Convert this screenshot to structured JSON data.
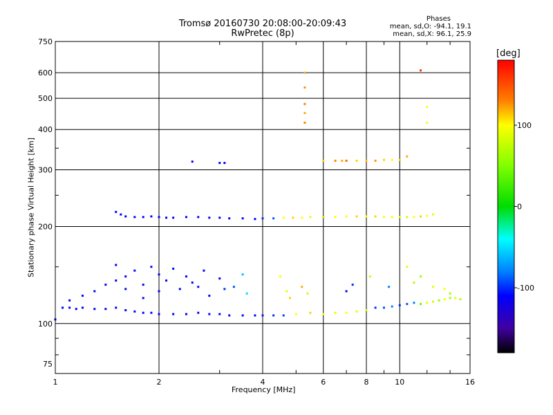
{
  "chart_data": {
    "type": "scatter",
    "title": "Tromsø 20160730 20:08:00-20:09:43",
    "subtitle": "RwPretec (8p)",
    "xlabel": "Frequency [MHz]",
    "ylabel": "Stationary phase Virtual Height [km]",
    "x_scale": "log",
    "y_scale": "log",
    "xlim": [
      1,
      16
    ],
    "ylim": [
      70,
      750
    ],
    "x_ticks": [
      1,
      2,
      4,
      6,
      8,
      10,
      16
    ],
    "x_tick_labels": [
      "1",
      "2",
      "4",
      "6",
      "8",
      "10",
      "16"
    ],
    "y_ticks": [
      75,
      100,
      200,
      300,
      400,
      500,
      600,
      750
    ],
    "y_tick_labels": [
      "75",
      "100",
      "200",
      "300",
      "400",
      "500",
      "600",
      "750"
    ],
    "grid": true,
    "stats": {
      "heading": "Phases",
      "line_o": "mean, sd,O: -94.1, 19.1",
      "line_x": "mean, sd,X:  96.1, 25.9"
    },
    "colorbar": {
      "label": "[deg]",
      "range": [
        -180,
        180
      ],
      "ticks": [
        100,
        0,
        -100
      ],
      "tick_labels": [
        "100",
        "0",
        "-100"
      ],
      "colors": [
        "#ff0000",
        "#ff8000",
        "#ffff00",
        "#80ff00",
        "#00e000",
        "#00ffff",
        "#0080ff",
        "#0000ff",
        "#4000a0",
        "#000000"
      ]
    },
    "series": [
      {
        "x": [
          1.0,
          1.05,
          1.1,
          1.15,
          1.2,
          1.3,
          1.4,
          1.5,
          1.6,
          1.7,
          1.8,
          1.9,
          2.0,
          2.2,
          2.4,
          2.6,
          2.8,
          3.0,
          3.2,
          3.5,
          3.8,
          4.0,
          4.3,
          4.6,
          5.0,
          5.5,
          6.0,
          6.5,
          7.0,
          7.5,
          8.0,
          8.5,
          9.0,
          9.5,
          10.0,
          10.5,
          11.0,
          11.5,
          12.0,
          12.5,
          13.0,
          13.5,
          14.0,
          14.5,
          15.0
        ],
        "y": [
          103,
          112,
          112,
          111,
          112,
          111,
          111,
          112,
          110,
          109,
          108,
          108,
          107,
          107,
          107,
          108,
          107,
          107,
          106,
          106,
          106,
          106,
          106,
          106,
          107,
          108,
          107,
          108,
          108,
          109,
          110,
          112,
          112,
          113,
          114,
          115,
          116,
          115,
          116,
          117,
          118,
          119,
          120,
          120,
          119
        ],
        "phase": [
          -110,
          -110,
          -110,
          -110,
          -110,
          -110,
          -110,
          -110,
          -110,
          -110,
          -110,
          -110,
          -110,
          -110,
          -110,
          -110,
          -110,
          -110,
          -110,
          -110,
          -110,
          -105,
          -100,
          -95,
          100,
          110,
          100,
          90,
          100,
          90,
          80,
          -100,
          -90,
          -80,
          -100,
          -90,
          -80,
          40,
          90,
          80,
          60,
          100,
          60,
          90,
          70
        ]
      },
      {
        "x": [
          1.5,
          1.55,
          1.6,
          1.7,
          1.8,
          1.9,
          2.0,
          2.1,
          2.2,
          2.4,
          2.6,
          2.8,
          3.0,
          3.2,
          3.5,
          3.8,
          4.0,
          4.3,
          4.6,
          4.9,
          5.2,
          5.5,
          6.0,
          6.5,
          7.0,
          7.5,
          8.0,
          8.5,
          9.0,
          9.5,
          10.0,
          10.5,
          11.0,
          11.5,
          12.0,
          12.5
        ],
        "y": [
          222,
          218,
          215,
          214,
          214,
          215,
          214,
          213,
          213,
          214,
          214,
          213,
          213,
          212,
          212,
          211,
          212,
          212,
          213,
          213,
          213,
          214,
          214,
          214,
          215,
          215,
          215,
          215,
          214,
          214,
          214,
          214,
          214,
          215,
          216,
          218
        ],
        "phase": [
          -110,
          -110,
          -110,
          -110,
          -110,
          -110,
          -110,
          -110,
          -110,
          -110,
          -110,
          -110,
          -110,
          -110,
          -110,
          -110,
          -100,
          -90,
          100,
          110,
          100,
          90,
          110,
          100,
          100,
          110,
          100,
          110,
          100,
          100,
          90,
          80,
          100,
          110,
          100,
          90
        ]
      },
      {
        "x": [
          5.3,
          5.3,
          5.3,
          5.3,
          5.3,
          6.0,
          6.5,
          6.8,
          7.0,
          7.5,
          8.0,
          8.5,
          9.0,
          9.5,
          10.0,
          10.5,
          11.5,
          12.0,
          2.5,
          3.0,
          3.1,
          12.0
        ],
        "y": [
          600,
          540,
          480,
          450,
          420,
          320,
          320,
          320,
          320,
          320,
          320,
          320,
          322,
          322,
          322,
          330,
          610,
          470,
          318,
          315,
          315,
          420
        ],
        "phase": [
          120,
          125,
          130,
          120,
          130,
          110,
          130,
          120,
          140,
          110,
          115,
          125,
          110,
          100,
          110,
          120,
          160,
          100,
          -110,
          -110,
          -110,
          100
        ]
      },
      {
        "x": [
          1.1,
          1.2,
          1.3,
          1.4,
          1.5,
          1.5,
          1.6,
          1.6,
          1.7,
          1.8,
          1.8,
          1.9,
          2.0,
          2.0,
          2.1,
          2.2,
          2.3,
          2.4,
          2.5,
          2.6,
          2.7,
          2.8,
          3.0,
          3.1,
          3.3,
          3.5,
          3.6,
          4.5,
          4.7,
          4.8,
          5.2,
          5.4,
          7.0,
          7.3,
          8.2,
          9.3,
          10.5,
          11.0,
          11.5,
          12.5,
          13.5,
          14.0
        ],
        "y": [
          118,
          122,
          126,
          132,
          136,
          152,
          140,
          128,
          146,
          132,
          120,
          150,
          142,
          126,
          136,
          148,
          128,
          140,
          134,
          130,
          146,
          122,
          138,
          128,
          130,
          142,
          124,
          140,
          126,
          120,
          130,
          124,
          126,
          132,
          140,
          130,
          150,
          134,
          140,
          130,
          128,
          124
        ],
        "phase": [
          -110,
          -110,
          -110,
          -110,
          -110,
          -110,
          -110,
          -110,
          -110,
          -110,
          -110,
          -110,
          -110,
          -110,
          -110,
          -110,
          -110,
          -110,
          -110,
          -110,
          -110,
          -110,
          -110,
          -100,
          -90,
          -60,
          -50,
          100,
          90,
          110,
          120,
          80,
          -110,
          -100,
          80,
          -80,
          90,
          70,
          60,
          90,
          100,
          60
        ]
      }
    ]
  }
}
